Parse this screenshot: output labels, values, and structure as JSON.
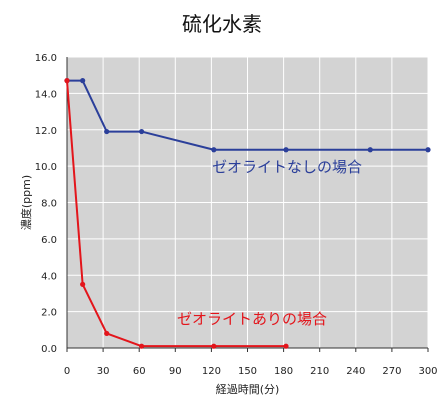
{
  "chart_data": {
    "type": "line",
    "title": "硫化水素",
    "xlabel": "経過時間(分)",
    "ylabel": "濃度(ppm)",
    "xlim": [
      0,
      300
    ],
    "ylim": [
      0,
      16
    ],
    "xticks": [
      0,
      30,
      60,
      90,
      120,
      150,
      180,
      210,
      240,
      270,
      300
    ],
    "yticks": [
      "0.0",
      "2.0",
      "4.0",
      "6.0",
      "8.0",
      "10.0",
      "12.0",
      "14.0",
      "16.0"
    ],
    "grid": true,
    "series": [
      {
        "name": "ゼオライトなしの場合",
        "color": "#2b3f9a",
        "x": [
          0,
          13,
          33,
          62,
          122,
          182,
          252,
          300
        ],
        "y": [
          14.7,
          14.7,
          11.9,
          11.9,
          10.9,
          10.9,
          10.9,
          10.9
        ]
      },
      {
        "name": "ゼオライトありの場合",
        "color": "#e3151b",
        "x": [
          0,
          13,
          33,
          62,
          122,
          182
        ],
        "y": [
          14.7,
          3.5,
          0.8,
          0.1,
          0.1,
          0.1
        ]
      }
    ],
    "annotations": [
      "ゼオライトなしの場合",
      "ゼオライトありの場合"
    ]
  }
}
